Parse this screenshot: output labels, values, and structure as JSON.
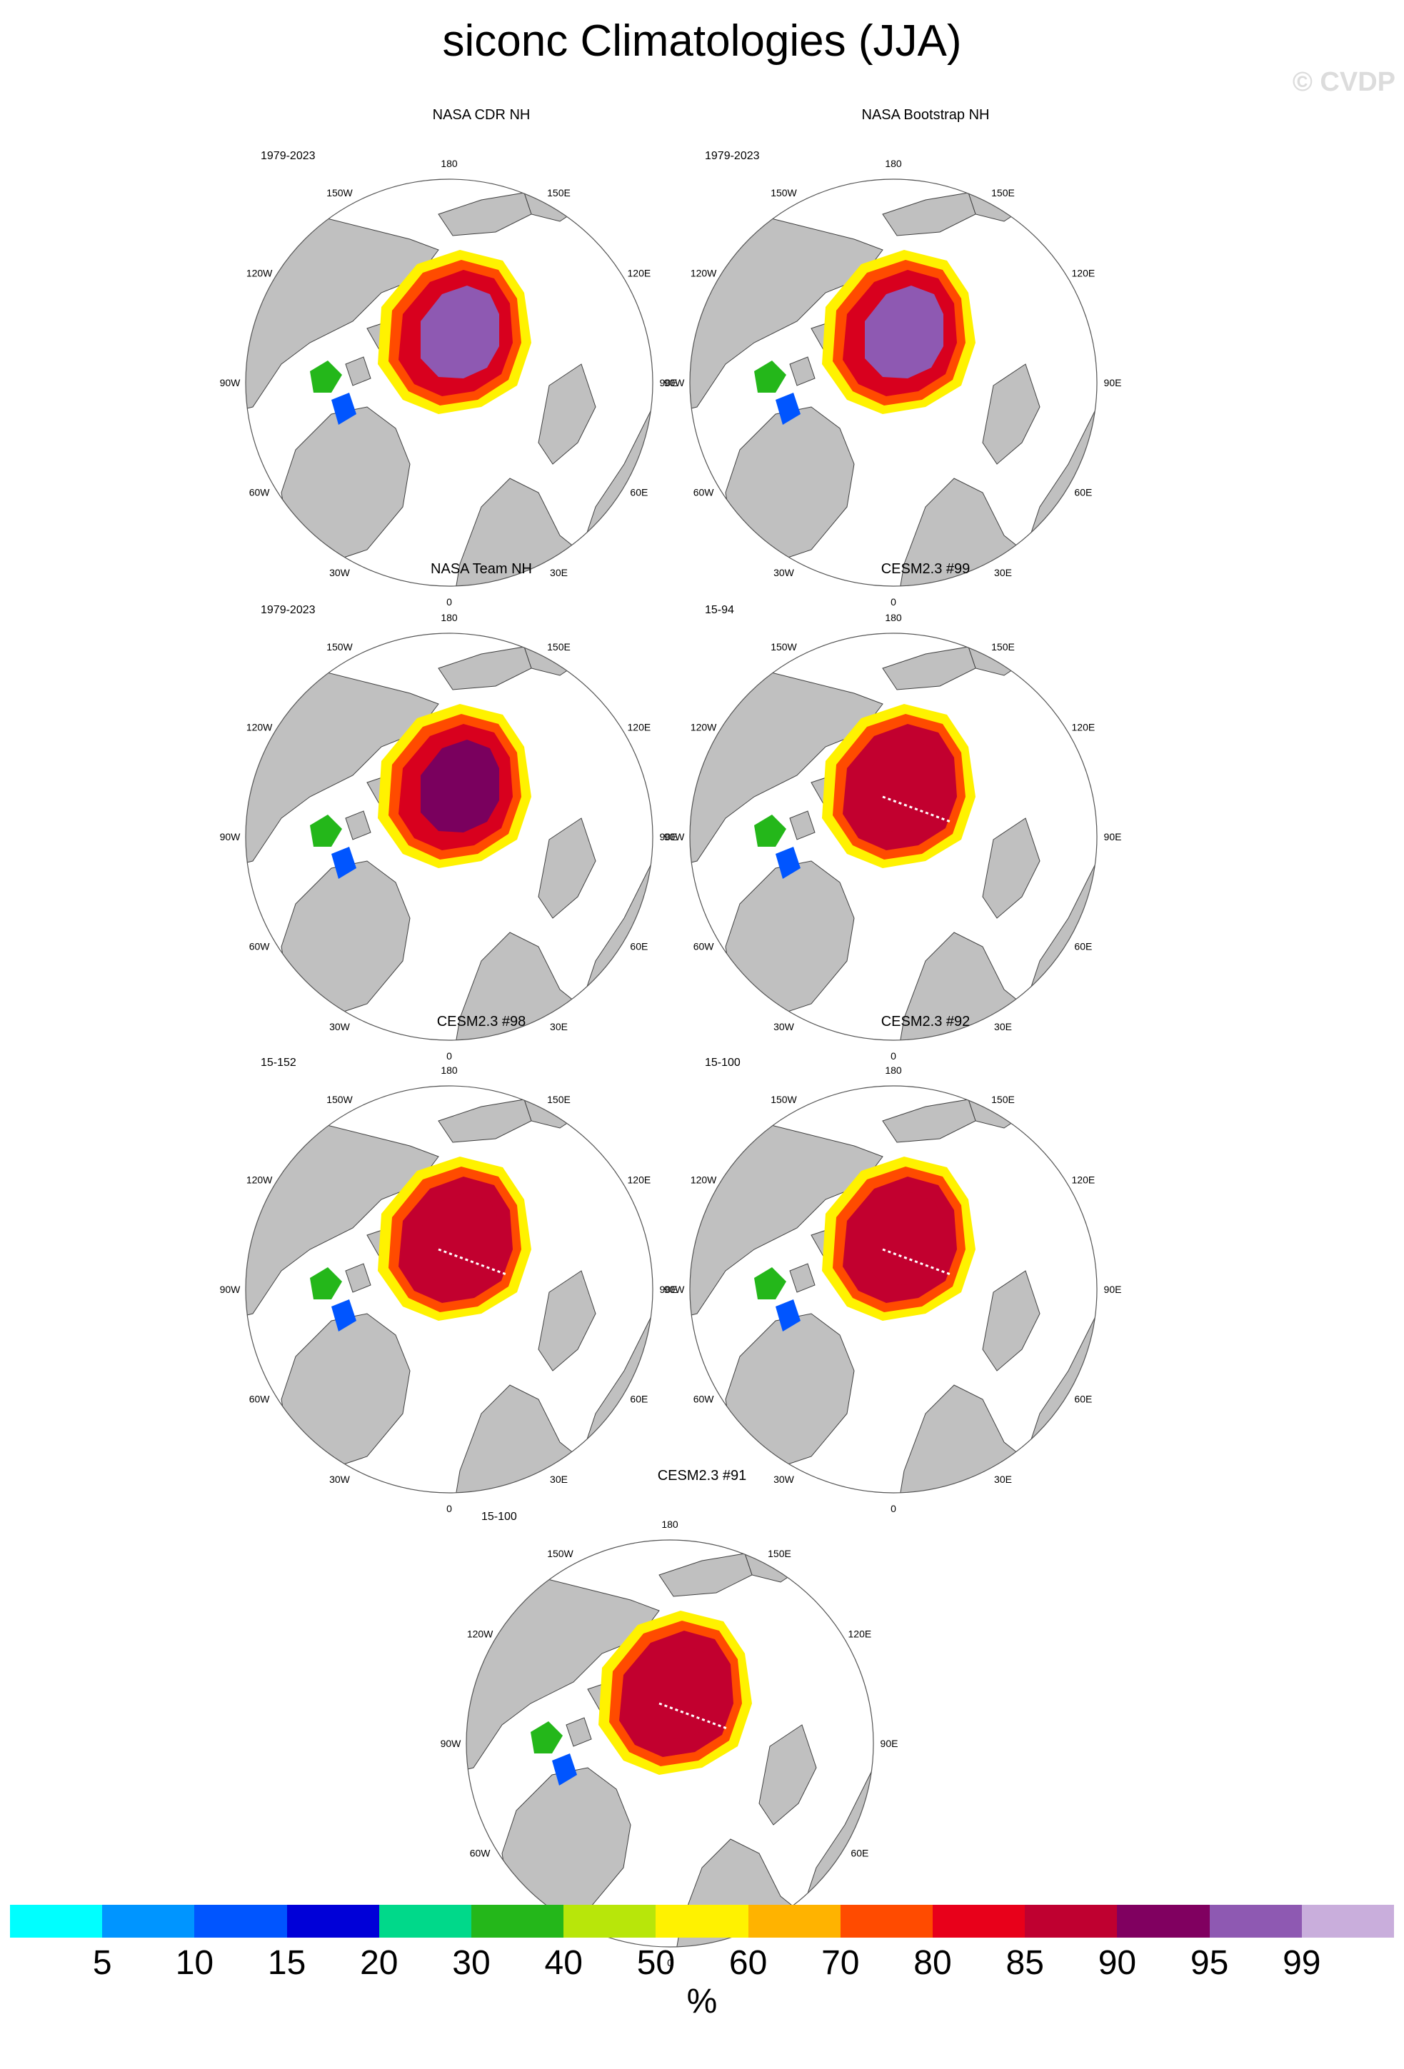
{
  "title": "siconc Climatologies (JJA)",
  "watermark": "© CVDP",
  "longitude_labels": [
    "180",
    "150E",
    "120E",
    "90E",
    "60E",
    "30E",
    "0",
    "30W",
    "60W",
    "90W",
    "120W",
    "150W"
  ],
  "panels": [
    {
      "title": "NASA CDR NH",
      "period": "1979-2023",
      "ice_fill": "#8e59b2",
      "inner_fill": "#d8001e",
      "model_line": false
    },
    {
      "title": "NASA Bootstrap NH",
      "period": "1979-2023",
      "ice_fill": "#8e59b2",
      "inner_fill": "#d8001e",
      "model_line": false
    },
    {
      "title": "NASA Team NH",
      "period": "1979-2023",
      "ice_fill": "#7a005e",
      "inner_fill": "#d8001e",
      "model_line": false
    },
    {
      "title": "CESM2.3 #99",
      "period": "15-94",
      "ice_fill": "#c2002f",
      "inner_fill": "#c2002f",
      "model_line": true
    },
    {
      "title": "CESM2.3 #98",
      "period": "15-152",
      "ice_fill": "#c2002f",
      "inner_fill": "#c2002f",
      "model_line": true
    },
    {
      "title": "CESM2.3 #92",
      "period": "15-100",
      "ice_fill": "#c2002f",
      "inner_fill": "#c2002f",
      "model_line": true
    },
    {
      "title": "CESM2.3 #91",
      "period": "15-100",
      "ice_fill": "#c2002f",
      "inner_fill": "#c2002f",
      "model_line": true
    }
  ],
  "colorbar": {
    "colors": [
      "#00ffff",
      "#0095ff",
      "#0055ff",
      "#0000d8",
      "#00d98a",
      "#24b71a",
      "#b8e60a",
      "#fff200",
      "#ffb300",
      "#ff4b00",
      "#e8001a",
      "#bf0030",
      "#800060",
      "#8e59b2",
      "#c9aedc"
    ],
    "labels": [
      "5",
      "10",
      "15",
      "20",
      "30",
      "40",
      "50",
      "60",
      "70",
      "80",
      "85",
      "90",
      "95",
      "99"
    ],
    "unit": "%"
  },
  "colors": {
    "land": "#c0c0c0",
    "ocean": "#ffffff",
    "coast": "#404040"
  }
}
